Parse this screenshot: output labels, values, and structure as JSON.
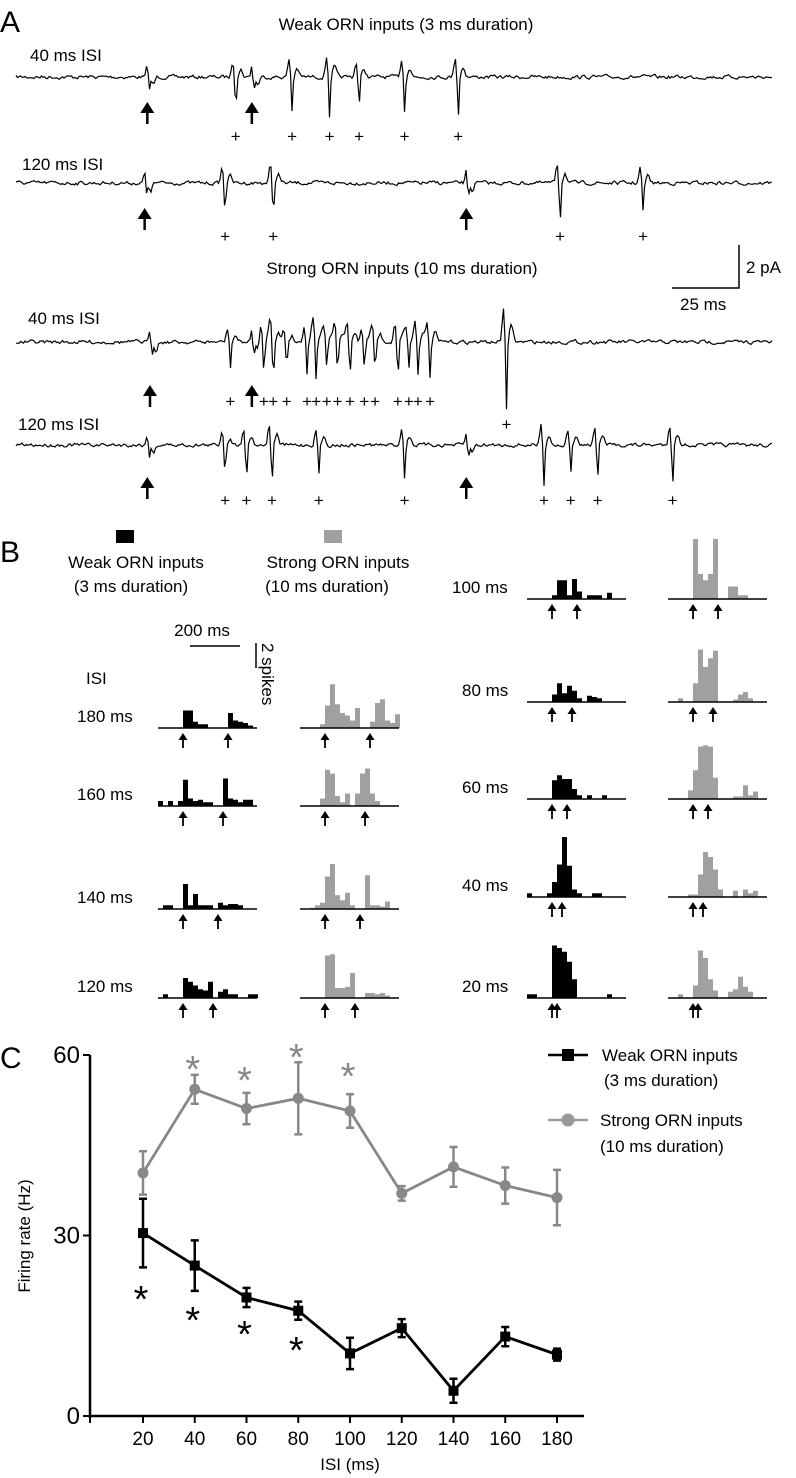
{
  "panel_a": {
    "letter": "A",
    "weak_title": "Weak ORN inputs (3 ms duration)",
    "strong_title": "Strong ORN inputs (10 ms duration)",
    "scale_current": "2 pA",
    "scale_time": "25 ms",
    "spike_marker": "+",
    "traces": [
      {
        "label": "40 ms ISI",
        "group": "weak",
        "stim_ms": [
          49,
          88
        ],
        "spike_ms": [
          82,
          103,
          117,
          128,
          145,
          165
        ]
      },
      {
        "label": "120 ms ISI",
        "group": "weak",
        "stim_ms": [
          48,
          168
        ],
        "spike_ms": [
          78,
          96,
          203,
          234
        ]
      },
      {
        "label": "40 ms ISI",
        "group": "strong",
        "stim_ms": [
          50,
          88
        ],
        "spike_ms": [
          80,
          92.5,
          96,
          101,
          108.6,
          112,
          116,
          120,
          124.6,
          130,
          134,
          142.5,
          146.6,
          150,
          154.5,
          183
        ]
      },
      {
        "label": "120 ms ISI",
        "group": "strong",
        "stim_ms": [
          49,
          168
        ],
        "spike_ms": [
          78,
          86,
          95.5,
          113,
          145,
          197,
          207,
          217,
          245
        ]
      }
    ]
  },
  "panel_b": {
    "letter": "B",
    "legend": [
      {
        "label1": "Weak ORN inputs",
        "label2": "(3 ms duration)",
        "color": "#000000"
      },
      {
        "label1": "Strong ORN inputs",
        "label2": "(10 ms duration)",
        "color": "#a0a0a0"
      }
    ],
    "scale_time": "200 ms",
    "scale_count": "2 spikes",
    "isi_header": "ISI",
    "bin_ms": 20,
    "histograms": [
      {
        "isi": "180 ms",
        "isi_ms": 180,
        "weak": [
          0,
          0,
          0,
          0,
          0,
          1.4,
          1.4,
          0.5,
          0.3,
          0.3,
          0,
          0,
          0,
          0,
          1.2,
          0.6,
          0.5,
          0.4,
          0.2,
          0
        ],
        "strong": [
          0,
          0,
          0,
          0,
          0.3,
          1.8,
          3.5,
          1.9,
          1.2,
          1.0,
          0.6,
          1.6,
          0,
          0,
          0.5,
          2.0,
          2.3,
          0.6,
          0.4,
          1.1
        ]
      },
      {
        "isi": "160 ms",
        "isi_ms": 160,
        "weak": [
          0.4,
          0,
          0.4,
          0,
          0.4,
          2.1,
          0.6,
          0.4,
          0.5,
          0.3,
          0.3,
          0,
          0,
          2.2,
          0.6,
          0.5,
          0.3,
          0.5,
          0.5,
          0
        ],
        "strong": [
          0,
          0,
          0,
          0,
          0.6,
          2.9,
          2.6,
          0.8,
          0.3,
          1.0,
          0,
          1.0,
          2.6,
          3.0,
          1.0,
          0.4,
          0,
          0,
          0,
          0
        ]
      },
      {
        "isi": "140 ms",
        "isi_ms": 140,
        "weak": [
          0,
          0.3,
          0.3,
          0,
          0,
          2.0,
          0.3,
          1.2,
          0.3,
          0.3,
          0.3,
          0,
          0.5,
          0.3,
          0.4,
          0.4,
          0.3,
          0,
          0,
          0
        ],
        "strong": [
          0,
          0,
          0.1,
          0.3,
          0.5,
          2.6,
          3.6,
          1.1,
          0.7,
          1.3,
          0.3,
          0,
          0,
          2.7,
          0.3,
          0.3,
          0.2,
          0.6,
          0,
          0
        ]
      },
      {
        "isi": "120 ms",
        "isi_ms": 120,
        "weak": [
          0,
          0.3,
          0,
          0,
          0,
          1.6,
          1.3,
          1.0,
          0.7,
          0.6,
          1.3,
          0,
          0.5,
          0.7,
          0.3,
          0.3,
          0,
          0,
          0.3,
          0.3
        ],
        "strong": [
          0,
          0,
          0,
          0,
          0,
          3.4,
          3.5,
          0.8,
          0.8,
          0.9,
          2.0,
          0,
          0,
          0.4,
          0.4,
          0.3,
          0.4,
          0.2,
          0,
          0
        ]
      },
      {
        "isi": "100 ms",
        "isi_ms": 100,
        "weak": [
          0,
          0,
          0,
          0,
          0,
          0.3,
          1.5,
          1.5,
          0.3,
          1.6,
          0.6,
          0,
          0.3,
          0.3,
          0.3,
          0,
          0.5,
          0,
          0,
          0
        ],
        "strong": [
          0,
          0,
          0,
          0,
          0,
          4.8,
          2.0,
          1.5,
          2.0,
          4.8,
          0,
          0,
          1.0,
          1.0,
          0.3,
          0.3,
          0,
          0,
          0,
          0
        ]
      },
      {
        "isi": "80 ms",
        "isi_ms": 80,
        "weak": [
          0,
          0,
          0,
          0,
          0,
          0.6,
          1.5,
          0.7,
          1.3,
          0.9,
          0.3,
          0,
          0.5,
          0.4,
          0.3,
          0,
          0,
          0,
          0,
          0
        ],
        "strong": [
          0,
          0,
          0.3,
          0,
          0,
          1.5,
          4.2,
          2.8,
          3.5,
          4.1,
          0,
          0,
          0,
          0.2,
          0.6,
          0.8,
          0.3,
          0,
          0,
          0
        ]
      },
      {
        "isi": "60 ms",
        "isi_ms": 60,
        "weak": [
          0,
          0,
          0,
          0,
          0,
          1.5,
          1.9,
          1.6,
          1.6,
          0.8,
          0.3,
          0,
          0.3,
          0,
          0,
          0.3,
          0,
          0,
          0,
          0
        ],
        "strong": [
          0,
          0,
          0,
          0,
          0.7,
          2.3,
          4.2,
          4.3,
          4.2,
          1.7,
          0,
          0,
          0,
          0.2,
          0.2,
          1.1,
          0.3,
          0.6,
          0,
          0
        ]
      },
      {
        "isi": "40 ms",
        "isi_ms": 40,
        "weak": [
          0.3,
          0,
          0,
          0,
          0.3,
          1.2,
          2.6,
          4.8,
          2.5,
          0.6,
          0.3,
          0,
          0,
          0.3,
          0.3,
          0,
          0,
          0,
          0,
          0
        ],
        "strong": [
          0,
          0,
          0,
          0,
          0.2,
          0.2,
          1.8,
          3.6,
          3.2,
          2.2,
          0.6,
          0,
          0,
          0.5,
          0,
          0.6,
          0.3,
          0.5,
          0,
          0
        ]
      },
      {
        "isi": "20 ms",
        "isi_ms": 20,
        "weak": [
          0.3,
          0.3,
          0,
          0,
          0,
          4.2,
          4.0,
          3.7,
          2.9,
          1.5,
          0,
          0,
          0,
          0,
          0,
          0,
          0.3,
          0,
          0,
          0
        ],
        "strong": [
          0,
          0,
          0.3,
          0,
          0,
          1.0,
          3.8,
          3.2,
          1.5,
          0.6,
          0,
          0,
          0.5,
          0.7,
          1.7,
          0.9,
          0.5,
          0,
          0,
          0
        ]
      }
    ]
  },
  "chart_data": {
    "type": "line",
    "letter": "C",
    "xlabel": "ISI (ms)",
    "ylabel": "Firing rate (Hz)",
    "x": [
      20,
      40,
      60,
      80,
      100,
      120,
      140,
      160,
      180
    ],
    "xticks": [
      "20",
      "40",
      "60",
      "80",
      "100",
      "120",
      "140",
      "160",
      "180"
    ],
    "yticks": [
      "0",
      "30",
      "60"
    ],
    "ylim": [
      0,
      60
    ],
    "xlim": [
      0,
      190
    ],
    "grid": false,
    "legend_position": "top-right",
    "significance_marker": "*",
    "series": [
      {
        "name": "Weak ORN inputs",
        "name2": "(3 ms duration)",
        "color": "#000000",
        "marker": "square",
        "values": [
          30.4,
          25.0,
          19.7,
          17.5,
          10.4,
          14.6,
          4.2,
          13.2,
          10.2
        ],
        "errors": [
          5.7,
          4.2,
          1.6,
          1.5,
          2.6,
          1.5,
          2.0,
          1.6,
          1.0
        ],
        "significant": [
          20,
          40,
          60,
          80
        ]
      },
      {
        "name": "Strong ORN inputs",
        "name2": "(10 ms duration)",
        "color": "#888888",
        "marker": "circle",
        "values": [
          40.4,
          54.3,
          51.1,
          52.8,
          50.7,
          37.0,
          41.4,
          38.3,
          36.3
        ],
        "errors": [
          3.6,
          2.4,
          2.6,
          6.0,
          2.8,
          1.2,
          3.3,
          3.0,
          4.6
        ],
        "significant": [
          40,
          60,
          80,
          100
        ]
      }
    ]
  }
}
